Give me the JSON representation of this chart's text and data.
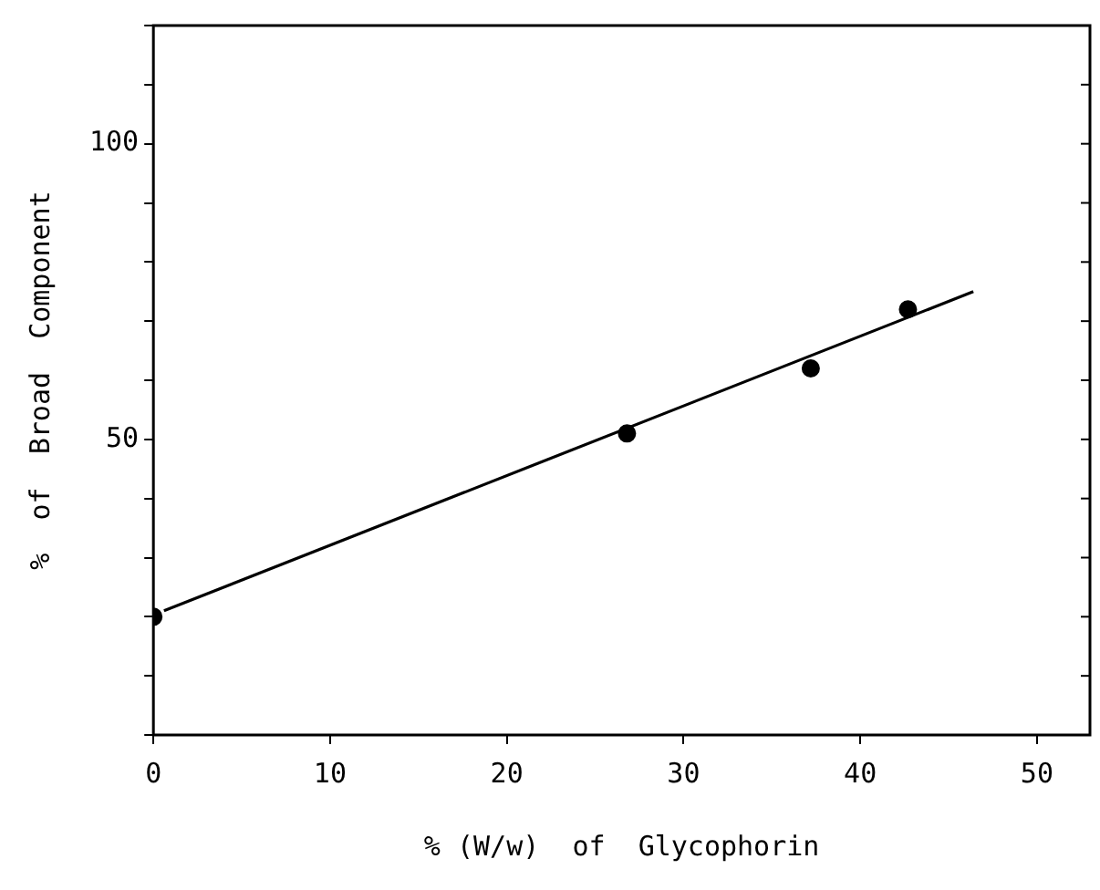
{
  "chart_data": {
    "type": "scatter",
    "xlabel": "% (W/w)  of  Glycophorin",
    "ylabel": "%  of  Broad  Component",
    "xlim": [
      0,
      53
    ],
    "ylim": [
      0,
      120
    ],
    "xticks": [
      0,
      10,
      20,
      30,
      40,
      50
    ],
    "yticks": [
      {
        "value": 0,
        "label": null
      },
      {
        "value": 10,
        "label": null
      },
      {
        "value": 20,
        "label": null
      },
      {
        "value": 30,
        "label": null
      },
      {
        "value": 40,
        "label": null
      },
      50,
      {
        "value": 60,
        "label": null
      },
      {
        "value": 70,
        "label": null
      },
      {
        "value": 80,
        "label": null
      },
      {
        "value": 90,
        "label": null
      },
      100,
      {
        "value": 110,
        "label": null
      },
      {
        "value": 120,
        "label": null
      }
    ],
    "series": [
      {
        "type": "scatter",
        "color": "#000000",
        "x": [
          0,
          26.8,
          37.2,
          42.7
        ],
        "values": [
          20,
          51,
          62,
          72
        ],
        "marker": "circle"
      },
      {
        "type": "line",
        "color": "#000000",
        "x": [
          0.6,
          46.4
        ],
        "values": [
          21,
          75
        ],
        "marker": "none"
      }
    ],
    "grid": false,
    "legend": false
  }
}
